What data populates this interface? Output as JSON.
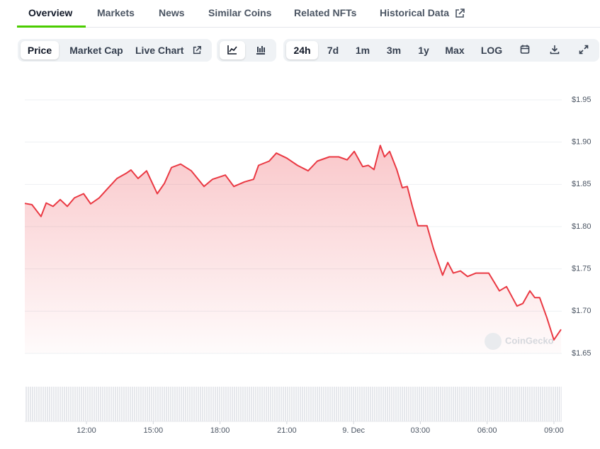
{
  "tabs": [
    "Overview",
    "Markets",
    "News",
    "Similar Coins",
    "Related NFTs",
    "Historical Data"
  ],
  "controls": {
    "metric": [
      "Price",
      "Market Cap",
      "Live Chart"
    ],
    "ranges": [
      "24h",
      "7d",
      "1m",
      "3m",
      "1y",
      "Max",
      "LOG"
    ]
  },
  "watermark": "CoinGecko",
  "chart_data": {
    "type": "line",
    "x": [
      9.23,
      9.55,
      9.96,
      10.19,
      10.5,
      10.82,
      11.14,
      11.46,
      11.87,
      12.19,
      12.57,
      12.95,
      13.37,
      13.78,
      14.0,
      14.32,
      14.7,
      15.18,
      15.5,
      15.82,
      16.23,
      16.71,
      17.28,
      17.66,
      18.24,
      18.62,
      19.1,
      19.51,
      19.73,
      20.21,
      20.53,
      21.0,
      21.48,
      21.96,
      22.37,
      22.91,
      23.33,
      23.71,
      24.03,
      24.41,
      24.66,
      24.92,
      25.2,
      25.39,
      25.62,
      25.94,
      26.19,
      26.41,
      26.64,
      26.89,
      27.3,
      27.59,
      28.0,
      28.23,
      28.48,
      28.8,
      29.12,
      29.5,
      30.07,
      30.55,
      30.87,
      31.34,
      31.6,
      31.92,
      32.14,
      32.36,
      32.68,
      33.0,
      33.32
    ],
    "series": [
      {
        "name": "Price",
        "color": "#ea3943",
        "values": [
          1.8275,
          1.826,
          1.812,
          1.828,
          1.824,
          1.832,
          1.824,
          1.834,
          1.839,
          1.827,
          1.834,
          1.845,
          1.857,
          1.863,
          1.867,
          1.857,
          1.866,
          1.839,
          1.851,
          1.87,
          1.874,
          1.866,
          1.8475,
          1.856,
          1.861,
          1.8475,
          1.853,
          1.856,
          1.8725,
          1.8775,
          1.887,
          1.881,
          1.8725,
          1.866,
          1.8775,
          1.8825,
          1.8825,
          1.879,
          1.889,
          1.871,
          1.8725,
          1.8675,
          1.896,
          1.8825,
          1.889,
          1.8675,
          1.846,
          1.8475,
          1.824,
          1.801,
          1.801,
          1.774,
          1.7425,
          1.7575,
          1.745,
          1.7475,
          1.741,
          1.745,
          1.745,
          1.724,
          1.729,
          1.706,
          1.709,
          1.724,
          1.716,
          1.716,
          1.6925,
          1.666,
          1.6783
        ]
      }
    ],
    "xlim": [
      9.23,
      33.32
    ],
    "xticks": [
      {
        "value": 12,
        "label": "12:00"
      },
      {
        "value": 15,
        "label": "15:00"
      },
      {
        "value": 18,
        "label": "18:00"
      },
      {
        "value": 21,
        "label": "21:00"
      },
      {
        "value": 24,
        "label": "9. Dec"
      },
      {
        "value": 27,
        "label": "03:00"
      },
      {
        "value": 30,
        "label": "06:00"
      },
      {
        "value": 33,
        "label": "09:00"
      }
    ],
    "ylim": [
      1.65,
      1.95
    ],
    "yticks": [
      {
        "value": 1.65,
        "label": "$1.65"
      },
      {
        "value": 1.7,
        "label": "$1.70"
      },
      {
        "value": 1.75,
        "label": "$1.75"
      },
      {
        "value": 1.8,
        "label": "$1.80"
      },
      {
        "value": 1.85,
        "label": "$1.85"
      },
      {
        "value": 1.9,
        "label": "$1.90"
      },
      {
        "value": 1.95,
        "label": "$1.95"
      }
    ],
    "grid": true
  }
}
